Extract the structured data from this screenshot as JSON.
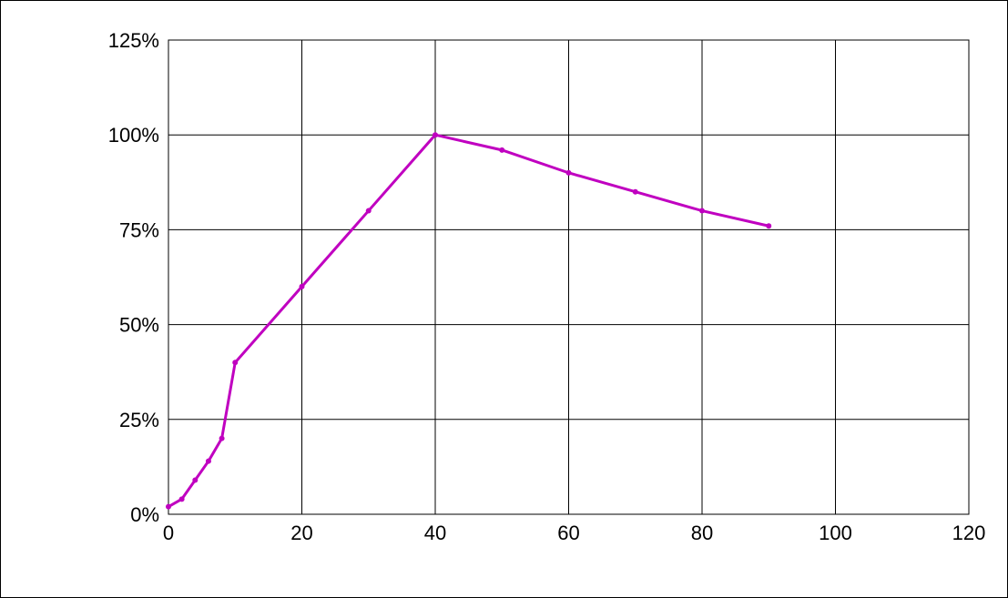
{
  "chart_data": {
    "type": "line",
    "title": "",
    "xlabel": "",
    "ylabel": "",
    "x_ticks": [
      "0",
      "20",
      "40",
      "60",
      "80",
      "100",
      "120"
    ],
    "y_ticks": [
      "125%",
      "100%",
      "75%",
      "50%",
      "25%",
      "0%"
    ],
    "xlim": [
      0,
      120
    ],
    "ylim": [
      0,
      125
    ],
    "grid": true,
    "series": [
      {
        "color": "#c000c0",
        "x": [
          0,
          2,
          4,
          6,
          8,
          10,
          20,
          30,
          40,
          50,
          60,
          70,
          80,
          90
        ],
        "y": [
          2,
          4,
          9,
          14,
          20,
          40,
          60,
          80,
          100,
          96,
          90,
          85,
          80,
          76
        ]
      }
    ]
  }
}
